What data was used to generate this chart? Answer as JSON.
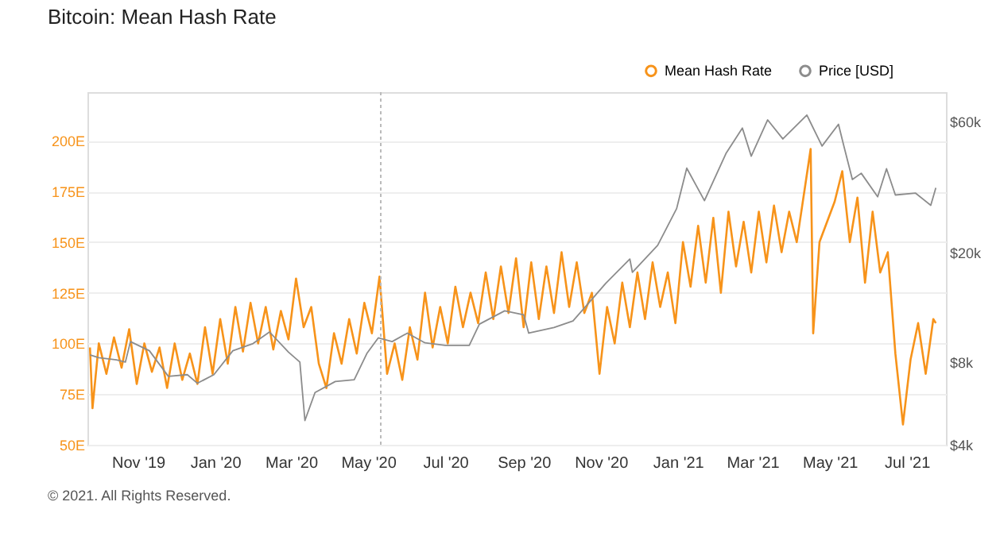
{
  "chart_data": {
    "type": "line",
    "title": "Bitcoin: Mean Hash Rate",
    "annotations": [
      "© 2021. All Rights Reserved."
    ],
    "xlim": [
      "2019-09-22",
      "2021-08-01"
    ],
    "xticks": [
      {
        "value": "2019-11-01",
        "label": "Nov '19"
      },
      {
        "value": "2020-01-01",
        "label": "Jan '20"
      },
      {
        "value": "2020-03-01",
        "label": "Mar '20"
      },
      {
        "value": "2020-05-01",
        "label": "May '20"
      },
      {
        "value": "2020-07-01",
        "label": "Jul '20"
      },
      {
        "value": "2020-09-01",
        "label": "Sep '20"
      },
      {
        "value": "2020-11-01",
        "label": "Nov '20"
      },
      {
        "value": "2021-01-01",
        "label": "Jan '21"
      },
      {
        "value": "2021-03-01",
        "label": "Mar '21"
      },
      {
        "value": "2021-05-01",
        "label": "May '21"
      },
      {
        "value": "2021-07-01",
        "label": "Jul '21"
      }
    ],
    "ylim": [
      50,
      224
    ],
    "yticks": [
      {
        "value": 50,
        "label": "50E"
      },
      {
        "value": 75,
        "label": "75E"
      },
      {
        "value": 100,
        "label": "100E"
      },
      {
        "value": 125,
        "label": "125E"
      },
      {
        "value": 150,
        "label": "150E"
      },
      {
        "value": 175,
        "label": "175E"
      },
      {
        "value": 200,
        "label": "200E"
      }
    ],
    "y2lim": [
      4000,
      77000
    ],
    "y2ticks": [
      {
        "value": 4000,
        "label": "$4k"
      },
      {
        "value": 8000,
        "label": "$8k"
      },
      {
        "value": 20000,
        "label": "$20k"
      },
      {
        "value": 60000,
        "label": "$60k"
      }
    ],
    "log": "y2",
    "grid": "y",
    "legend": "top right",
    "marker": "none",
    "line_style": "solid",
    "ref_lines": [
      {
        "axis": "x",
        "value": "2020-05-11",
        "color": "#bbbbbb",
        "line_style": "dotted"
      }
    ],
    "series": [
      {
        "name": "Mean Hash Rate",
        "color": "#f7931a",
        "x": [
          "2019-09-24",
          "2019-09-26",
          "2019-10-01",
          "2019-10-07",
          "2019-10-13",
          "2019-10-19",
          "2019-10-25",
          "2019-10-31",
          "2019-11-06",
          "2019-11-12",
          "2019-11-18",
          "2019-11-24",
          "2019-11-30",
          "2019-12-06",
          "2019-12-12",
          "2019-12-18",
          "2019-12-24",
          "2019-12-30",
          "2020-01-05",
          "2020-01-11",
          "2020-01-17",
          "2020-01-23",
          "2020-01-29",
          "2020-02-04",
          "2020-02-10",
          "2020-02-16",
          "2020-02-22",
          "2020-02-28",
          "2020-03-05",
          "2020-03-11",
          "2020-03-17",
          "2020-03-23",
          "2020-03-29",
          "2020-04-04",
          "2020-04-10",
          "2020-04-16",
          "2020-04-22",
          "2020-04-28",
          "2020-05-04",
          "2020-05-10",
          "2020-05-16",
          "2020-05-22",
          "2020-05-28",
          "2020-06-03",
          "2020-06-09",
          "2020-06-15",
          "2020-06-21",
          "2020-06-27",
          "2020-07-03",
          "2020-07-09",
          "2020-07-15",
          "2020-07-21",
          "2020-07-27",
          "2020-08-02",
          "2020-08-08",
          "2020-08-14",
          "2020-08-20",
          "2020-08-26",
          "2020-09-01",
          "2020-09-07",
          "2020-09-13",
          "2020-09-19",
          "2020-09-25",
          "2020-10-01",
          "2020-10-07",
          "2020-10-13",
          "2020-10-19",
          "2020-10-25",
          "2020-10-31",
          "2020-11-06",
          "2020-11-12",
          "2020-11-18",
          "2020-11-24",
          "2020-11-30",
          "2020-12-06",
          "2020-12-12",
          "2020-12-18",
          "2020-12-24",
          "2020-12-30",
          "2021-01-05",
          "2021-01-11",
          "2021-01-17",
          "2021-01-23",
          "2021-01-29",
          "2021-02-04",
          "2021-02-10",
          "2021-02-16",
          "2021-02-22",
          "2021-02-28",
          "2021-03-06",
          "2021-03-12",
          "2021-03-18",
          "2021-03-24",
          "2021-03-30",
          "2021-04-05",
          "2021-04-11",
          "2021-04-16",
          "2021-04-18",
          "2021-04-23",
          "2021-04-29",
          "2021-05-05",
          "2021-05-11",
          "2021-05-17",
          "2021-05-23",
          "2021-05-29",
          "2021-06-04",
          "2021-06-10",
          "2021-06-16",
          "2021-06-22",
          "2021-06-28",
          "2021-07-04",
          "2021-07-10",
          "2021-07-16",
          "2021-07-22",
          "2021-07-24"
        ],
        "values": [
          98,
          68,
          100,
          85,
          103,
          88,
          107,
          80,
          100,
          86,
          98,
          78,
          100,
          82,
          95,
          80,
          108,
          85,
          112,
          90,
          118,
          96,
          120,
          100,
          118,
          97,
          116,
          102,
          132,
          108,
          118,
          90,
          78,
          105,
          90,
          112,
          95,
          120,
          105,
          133,
          85,
          100,
          82,
          108,
          92,
          125,
          98,
          118,
          100,
          128,
          108,
          125,
          110,
          135,
          112,
          138,
          115,
          142,
          108,
          140,
          112,
          138,
          115,
          145,
          118,
          140,
          115,
          125,
          85,
          118,
          100,
          130,
          108,
          135,
          112,
          140,
          118,
          135,
          110,
          150,
          128,
          158,
          130,
          162,
          125,
          165,
          138,
          160,
          135,
          165,
          140,
          168,
          145,
          165,
          150,
          175,
          196,
          105,
          150,
          160,
          170,
          185,
          150,
          172,
          130,
          165,
          135,
          145,
          95,
          60,
          92,
          110,
          85,
          112,
          110
        ]
      },
      {
        "name": "Price [USD]",
        "color": "#8c8c8c",
        "axis": "y2",
        "x": [
          "2019-09-24",
          "2019-10-01",
          "2019-10-15",
          "2019-10-22",
          "2019-10-26",
          "2019-11-10",
          "2019-11-25",
          "2019-12-10",
          "2019-12-18",
          "2019-12-31",
          "2020-01-15",
          "2020-01-31",
          "2020-02-13",
          "2020-02-28",
          "2020-03-08",
          "2020-03-12",
          "2020-03-20",
          "2020-04-05",
          "2020-04-20",
          "2020-04-30",
          "2020-05-09",
          "2020-05-20",
          "2020-06-01",
          "2020-06-15",
          "2020-07-01",
          "2020-07-20",
          "2020-07-28",
          "2020-08-17",
          "2020-09-01",
          "2020-09-05",
          "2020-09-25",
          "2020-10-10",
          "2020-10-21",
          "2020-11-05",
          "2020-11-24",
          "2020-11-26",
          "2020-12-16",
          "2020-12-31",
          "2021-01-08",
          "2021-01-22",
          "2021-02-08",
          "2021-02-21",
          "2021-02-28",
          "2021-03-13",
          "2021-03-25",
          "2021-04-13",
          "2021-04-25",
          "2021-05-08",
          "2021-05-12",
          "2021-05-19",
          "2021-05-26",
          "2021-06-08",
          "2021-06-15",
          "2021-06-22",
          "2021-07-08",
          "2021-07-20",
          "2021-07-24"
        ],
        "values": [
          8500,
          8300,
          8150,
          8000,
          9500,
          8800,
          7100,
          7200,
          6700,
          7200,
          8800,
          9350,
          10300,
          8700,
          8000,
          4900,
          6200,
          6800,
          6900,
          8600,
          9800,
          9500,
          10200,
          9400,
          9200,
          9200,
          11000,
          12300,
          11900,
          10200,
          10700,
          11300,
          12900,
          15500,
          19000,
          17000,
          21300,
          29000,
          40700,
          31000,
          46000,
          57000,
          45000,
          61000,
          52000,
          63500,
          49000,
          58800,
          49500,
          37000,
          39000,
          32000,
          40500,
          32500,
          33000,
          29800,
          34500
        ]
      }
    ]
  }
}
